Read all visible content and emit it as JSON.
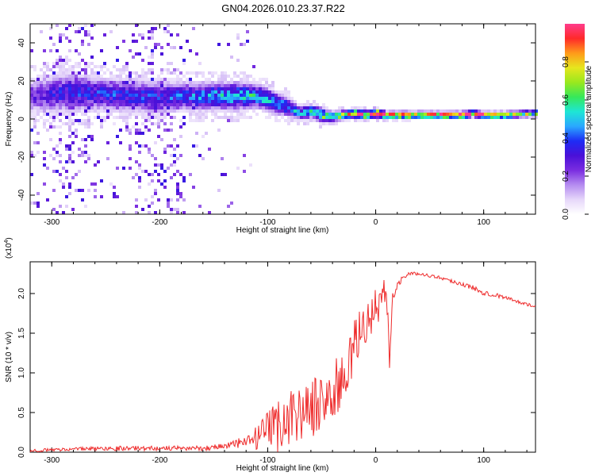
{
  "title": "GN04.2026.010.23.37.R22",
  "colors": {
    "snr_line": "#ee2b2b",
    "axis": "#000000",
    "colormap": [
      "#ffffff",
      "#e6d7fa",
      "#b58cf0",
      "#7a2de0",
      "#4a10d8",
      "#1e2cf5",
      "#2aa8ff",
      "#1ee6d5",
      "#36e85a",
      "#9ae81e",
      "#e6e61e",
      "#ff9a1a",
      "#ff2a2a",
      "#ff3c8c"
    ]
  },
  "chart_data": [
    {
      "type": "heatmap",
      "name": "spectrogram",
      "xlabel": "Height of straight line (km)",
      "ylabel": "Frequency (Hz)",
      "xlim": [
        -320,
        148
      ],
      "ylim": [
        -50,
        50
      ],
      "xticks": [
        -300,
        -200,
        -100,
        0,
        100
      ],
      "yticks": [
        -40,
        -20,
        0,
        20,
        40
      ],
      "colorbar": {
        "label": "Normalized spectral amplitude",
        "range": [
          0,
          1
        ],
        "ticks": [
          "0.0",
          "0.2",
          "0.4",
          "0.6",
          "0.8"
        ],
        "tick_values": [
          0.0,
          0.2,
          0.4,
          0.6,
          0.8
        ]
      },
      "ridge": {
        "x": [
          -320,
          -300,
          -280,
          -250,
          -220,
          -200,
          -180,
          -150,
          -130,
          -110,
          -95,
          -80,
          -70,
          -60,
          -50,
          -40,
          -30,
          -20,
          -10,
          0,
          10,
          20,
          40,
          60,
          80,
          90,
          100,
          120,
          148
        ],
        "center_hz": [
          12,
          13,
          14,
          13,
          12,
          11,
          12,
          12,
          12,
          12,
          9,
          6,
          3,
          4,
          2,
          1,
          2,
          3,
          2,
          3,
          2,
          2,
          2,
          2,
          2,
          3,
          2,
          2,
          3
        ],
        "halfwidth_hz": [
          7,
          8,
          8,
          7,
          7,
          7,
          6,
          6,
          6,
          5,
          5,
          4,
          3,
          3,
          3,
          2,
          2,
          2,
          2,
          2,
          1.5,
          1.5,
          1.5,
          1.5,
          1.5,
          1.5,
          1.5,
          1.5,
          1.5
        ],
        "peak_amplitude": [
          0.25,
          0.3,
          0.35,
          0.35,
          0.35,
          0.35,
          0.38,
          0.45,
          0.5,
          0.5,
          0.45,
          0.45,
          0.45,
          0.5,
          0.6,
          0.7,
          0.75,
          0.8,
          0.85,
          0.9,
          0.95,
          0.95,
          0.95,
          0.95,
          0.92,
          0.95,
          0.9,
          0.8,
          0.6
        ]
      }
    },
    {
      "type": "line",
      "name": "snr",
      "xlabel": "Height of straight line (km)",
      "ylabel": "SNR (10 * v/v)",
      "scale_label": "(x10",
      "scale_exponent": "4",
      "scale_close": ")",
      "xlim": [
        -320,
        148
      ],
      "ylim": [
        0,
        2.4
      ],
      "xticks": [
        -300,
        -200,
        -100,
        0,
        100
      ],
      "yticks": [
        "0.0",
        "0.5",
        "1.0",
        "1.5",
        "2.0"
      ],
      "ytick_values": [
        0.0,
        0.5,
        1.0,
        1.5,
        2.0
      ],
      "series": [
        {
          "name": "SNR",
          "x": [
            -320,
            -280,
            -240,
            -200,
            -160,
            -140,
            -120,
            -110,
            -100,
            -90,
            -80,
            -70,
            -60,
            -50,
            -40,
            -30,
            -25,
            -20,
            -15,
            -10,
            -5,
            0,
            5,
            10,
            13,
            15,
            20,
            25,
            30,
            40,
            60,
            80,
            100,
            120,
            148
          ],
          "y": [
            0.02,
            0.04,
            0.05,
            0.05,
            0.05,
            0.08,
            0.12,
            0.18,
            0.25,
            0.35,
            0.45,
            0.5,
            0.55,
            0.62,
            0.75,
            0.9,
            1.1,
            1.3,
            1.5,
            1.6,
            1.7,
            1.85,
            1.9,
            2.0,
            1.1,
            1.9,
            2.1,
            2.2,
            2.25,
            2.25,
            2.2,
            2.12,
            2.02,
            1.95,
            1.83
          ],
          "noise_amplitude": [
            0.02,
            0.02,
            0.03,
            0.03,
            0.03,
            0.05,
            0.08,
            0.15,
            0.25,
            0.35,
            0.35,
            0.35,
            0.35,
            0.4,
            0.4,
            0.35,
            0.35,
            0.35,
            0.3,
            0.3,
            0.25,
            0.25,
            0.25,
            0.2,
            0.15,
            0.1,
            0.05,
            0.03,
            0.02,
            0.02,
            0.02,
            0.03,
            0.04,
            0.02,
            0.02
          ]
        }
      ]
    }
  ]
}
